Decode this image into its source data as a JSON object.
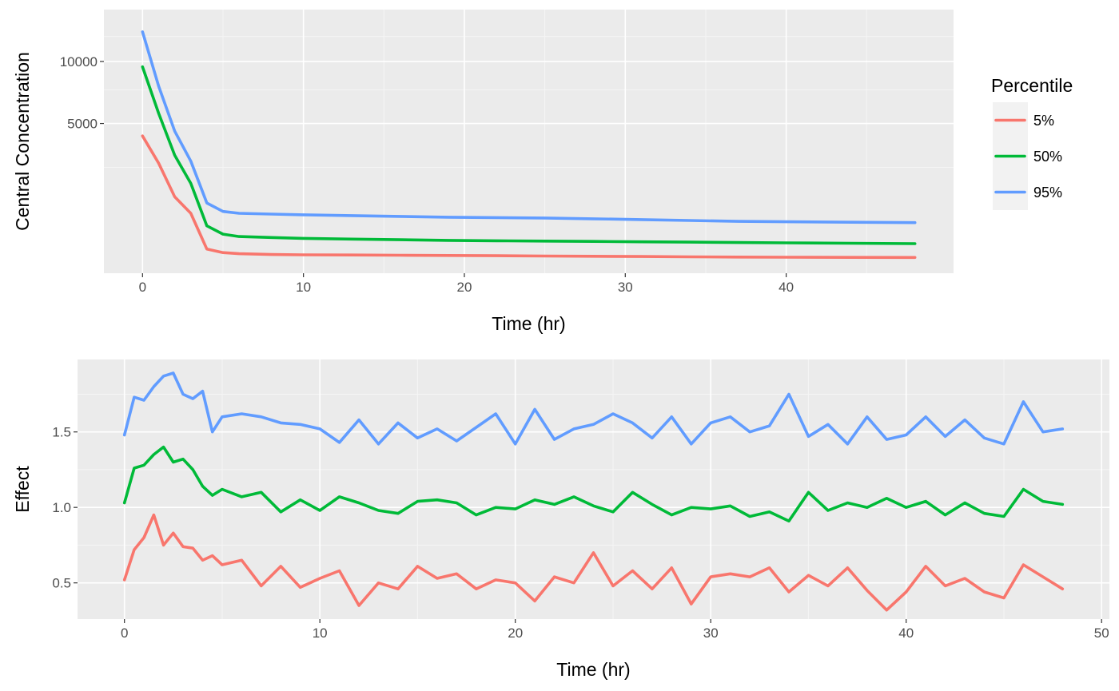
{
  "chart_data": [
    {
      "type": "line",
      "xlabel": "Time (hr)",
      "ylabel": "Central Concentration",
      "xlim": [
        -2.4,
        50.4
      ],
      "x_ticks": [
        "0",
        "10",
        "20",
        "30",
        "40"
      ],
      "y_ticks": [
        "10000",
        "5000"
      ],
      "legend_placement": "right",
      "grid": true,
      "series": [
        {
          "name": "5%",
          "color": "#F8766D",
          "values": [
            4200,
            2700,
            1300,
            800,
            130,
            95,
            85,
            78,
            75,
            74,
            72,
            70,
            68,
            66,
            64,
            62,
            60,
            58,
            57,
            56,
            55
          ]
        },
        {
          "name": "50%",
          "color": "#00BA38",
          "values": [
            9500,
            5700,
            3100,
            1800,
            500,
            340,
            300,
            285,
            270,
            260,
            250,
            240,
            235,
            230,
            225,
            220,
            215,
            210,
            205,
            200,
            195
          ]
        },
        {
          "name": "95%",
          "color": "#619CFF",
          "values": [
            13000,
            7800,
            4500,
            2800,
            1100,
            850,
            800,
            780,
            760,
            740,
            720,
            700,
            690,
            680,
            660,
            640,
            620,
            600,
            590,
            580,
            570
          ]
        }
      ],
      "x": [
        0,
        1,
        2,
        3,
        4,
        5,
        6,
        8,
        10,
        13,
        16,
        19,
        22,
        25,
        28,
        31,
        34,
        37,
        40,
        44,
        48
      ],
      "legend": {
        "title": "Percentile"
      }
    },
    {
      "type": "line",
      "xlabel": "Time (hr)",
      "ylabel": "Effect",
      "xlim": [
        -2.4,
        50.4
      ],
      "ylim": [
        0.26,
        1.98
      ],
      "x_ticks": [
        "0",
        "10",
        "20",
        "30",
        "40",
        "50"
      ],
      "y_ticks": [
        "0.5",
        "1.0",
        "1.5"
      ],
      "grid": true,
      "x": [
        0,
        0.5,
        1,
        1.5,
        2,
        2.5,
        3,
        3.5,
        4,
        4.5,
        5,
        6,
        7,
        8,
        9,
        10,
        11,
        12,
        13,
        14,
        15,
        16,
        17,
        18,
        19,
        20,
        21,
        22,
        23,
        24,
        25,
        26,
        27,
        28,
        29,
        30,
        31,
        32,
        33,
        34,
        35,
        36,
        37,
        38,
        39,
        40,
        41,
        42,
        43,
        44,
        45,
        46,
        47,
        48
      ],
      "series": [
        {
          "name": "5%",
          "color": "#F8766D",
          "values": [
            0.52,
            0.72,
            0.8,
            0.95,
            0.75,
            0.83,
            0.74,
            0.73,
            0.65,
            0.68,
            0.62,
            0.65,
            0.48,
            0.61,
            0.47,
            0.53,
            0.58,
            0.35,
            0.5,
            0.46,
            0.61,
            0.53,
            0.56,
            0.46,
            0.52,
            0.5,
            0.38,
            0.54,
            0.5,
            0.7,
            0.48,
            0.58,
            0.46,
            0.6,
            0.36,
            0.54,
            0.56,
            0.54,
            0.6,
            0.44,
            0.55,
            0.48,
            0.6,
            0.45,
            0.32,
            0.44,
            0.61,
            0.48,
            0.53,
            0.44,
            0.4,
            0.62,
            0.54,
            0.46
          ]
        },
        {
          "name": "50%",
          "color": "#00BA38",
          "values": [
            1.03,
            1.26,
            1.28,
            1.35,
            1.4,
            1.3,
            1.32,
            1.25,
            1.14,
            1.08,
            1.12,
            1.07,
            1.1,
            0.97,
            1.05,
            0.98,
            1.07,
            1.03,
            0.98,
            0.96,
            1.04,
            1.05,
            1.03,
            0.95,
            1.0,
            0.99,
            1.05,
            1.02,
            1.07,
            1.01,
            0.97,
            1.1,
            1.02,
            0.95,
            1.0,
            0.99,
            1.01,
            0.94,
            0.97,
            0.91,
            1.1,
            0.98,
            1.03,
            1.0,
            1.06,
            1.0,
            1.04,
            0.95,
            1.03,
            0.96,
            0.94,
            1.12,
            1.04,
            1.02
          ]
        },
        {
          "name": "95%",
          "color": "#619CFF",
          "values": [
            1.48,
            1.73,
            1.71,
            1.8,
            1.87,
            1.89,
            1.75,
            1.72,
            1.77,
            1.5,
            1.6,
            1.62,
            1.6,
            1.56,
            1.55,
            1.52,
            1.43,
            1.58,
            1.42,
            1.56,
            1.46,
            1.52,
            1.44,
            1.53,
            1.62,
            1.42,
            1.65,
            1.45,
            1.52,
            1.55,
            1.62,
            1.56,
            1.46,
            1.6,
            1.42,
            1.56,
            1.6,
            1.5,
            1.54,
            1.75,
            1.47,
            1.55,
            1.42,
            1.6,
            1.45,
            1.48,
            1.6,
            1.47,
            1.58,
            1.46,
            1.42,
            1.7,
            1.5,
            1.52
          ]
        }
      ]
    }
  ]
}
